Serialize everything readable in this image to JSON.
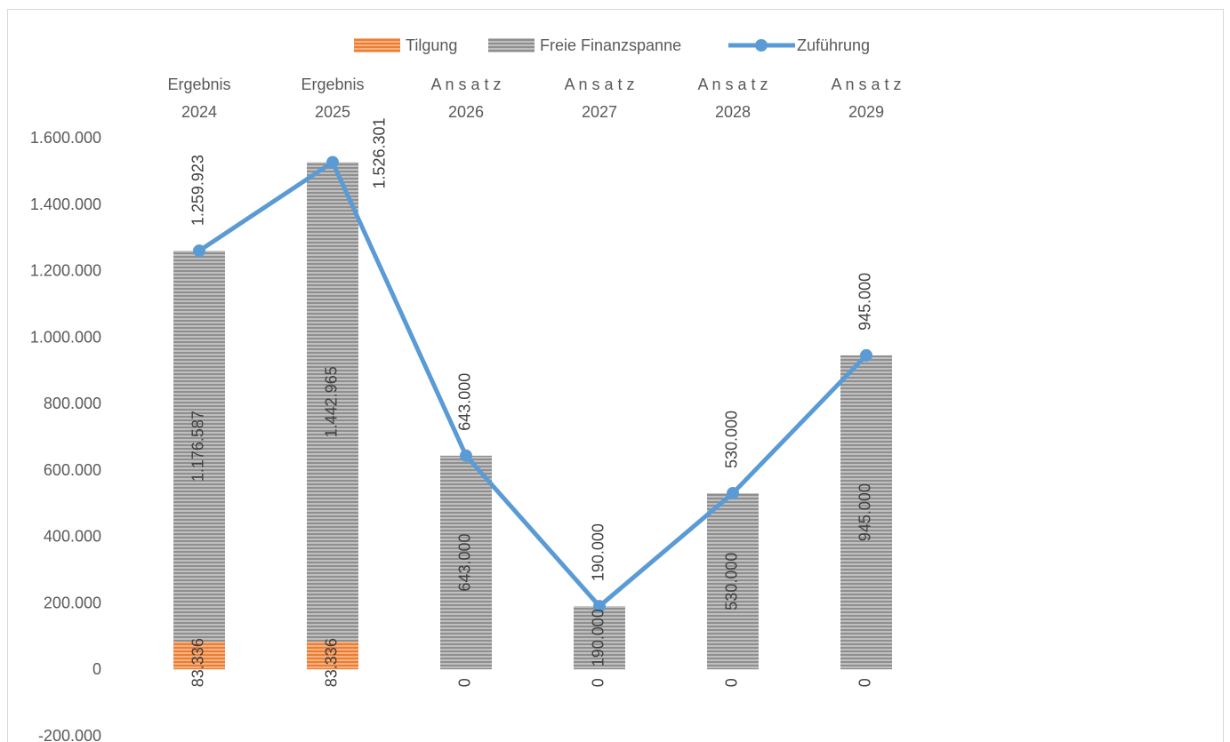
{
  "chart_data": {
    "type": "bar",
    "stacked": true,
    "categories": [
      [
        "Ergebnis",
        "2024"
      ],
      [
        "Ergebnis",
        "2025"
      ],
      [
        "A n s a t z",
        "2026"
      ],
      [
        "A n s a t z",
        "2027"
      ],
      [
        "A n s a t z",
        "2028"
      ],
      [
        "A n s a t z",
        "2029"
      ]
    ],
    "series": [
      {
        "name": "Tilgung",
        "kind": "bar",
        "color": "#ed7d31",
        "values": [
          83336,
          83336,
          0,
          0,
          0,
          0
        ],
        "labels": [
          "83.336",
          "83.336",
          "0",
          "0",
          "0",
          "0"
        ]
      },
      {
        "name": "Freie Finanzspanne",
        "kind": "bar",
        "color": "#a6a6a6",
        "values": [
          1176587,
          1442965,
          643000,
          190000,
          530000,
          945000
        ],
        "labels": [
          "1.176.587",
          "1.442.965",
          "643.000",
          "190.000",
          "530.000",
          "945.000"
        ]
      },
      {
        "name": "Zuführung",
        "kind": "line",
        "color": "#5b9bd5",
        "values": [
          1259923,
          1526301,
          643000,
          190000,
          530000,
          945000
        ],
        "labels": [
          "1.259.923",
          "1.526.301",
          "643.000",
          "190.000",
          "530.000",
          "945.000"
        ]
      }
    ],
    "y_ticks": [
      1600000,
      1400000,
      1200000,
      1000000,
      800000,
      600000,
      400000,
      200000,
      0,
      -200000
    ],
    "y_tick_labels": [
      "1.600.000",
      "1.400.000",
      "1.200.000",
      "1.000.000",
      "800.000",
      "600.000",
      "400.000",
      "200.000",
      "0",
      "-200.000"
    ],
    "ylim": [
      -200000,
      1600000
    ],
    "legend_position": "top",
    "grid": false,
    "title": "",
    "xlabel": "",
    "ylabel": ""
  }
}
